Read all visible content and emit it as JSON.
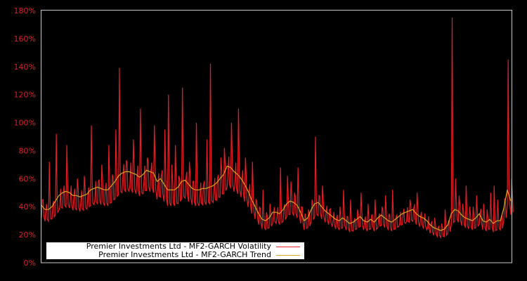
{
  "chart_data": {
    "type": "line",
    "title": "",
    "xlabel": "",
    "ylabel": "",
    "ylim": [
      0,
      180
    ],
    "y_ticks": [
      "0%",
      "20%",
      "40%",
      "60%",
      "80%",
      "100%",
      "120%",
      "140%",
      "160%",
      "180%"
    ],
    "grid": false,
    "legend_position": "lower left",
    "background": "#000000",
    "axis_color": "#c8c8c8",
    "tick_label_color": "#e31e24",
    "x": [
      0,
      1,
      2,
      3,
      4,
      5,
      6,
      7,
      8,
      9,
      10,
      11,
      12,
      13,
      14,
      15,
      16,
      17,
      18,
      19,
      20,
      21,
      22,
      23,
      24,
      25,
      26,
      27,
      28,
      29,
      30,
      31,
      32,
      33,
      34,
      35,
      36,
      37,
      38,
      39,
      40,
      41,
      42,
      43,
      44,
      45,
      46,
      47,
      48,
      49,
      50,
      51,
      52,
      53,
      54,
      55,
      56,
      57,
      58,
      59,
      60,
      61,
      62,
      63,
      64,
      65,
      66,
      67,
      68,
      69,
      70,
      71,
      72,
      73,
      74,
      75,
      76,
      77,
      78,
      79,
      80,
      81,
      82,
      83,
      84,
      85,
      86,
      87,
      88,
      89,
      90,
      91,
      92,
      93,
      94,
      95,
      96,
      97,
      98,
      99,
      100,
      101,
      102,
      103,
      104,
      105,
      106,
      107,
      108,
      109,
      110,
      111,
      112,
      113,
      114,
      115,
      116,
      117,
      118,
      119,
      120,
      121,
      122,
      123,
      124,
      125,
      126,
      127,
      128,
      129,
      130,
      131,
      132,
      133,
      134
    ],
    "series": [
      {
        "name": "Premier Investments Ltd - MF2-GARCH Volatility",
        "color": "#e31e24",
        "values": [
          45,
          38,
          72,
          42,
          92,
          40,
          50,
          84,
          45,
          48,
          60,
          44,
          62,
          48,
          98,
          45,
          58,
          70,
          52,
          84,
          63,
          95,
          139,
          62,
          73,
          55,
          88,
          60,
          110,
          58,
          75,
          65,
          98,
          55,
          62,
          95,
          120,
          70,
          84,
          62,
          125,
          60,
          72,
          58,
          100,
          48,
          55,
          88,
          142,
          52,
          60,
          75,
          82,
          64,
          100,
          58,
          110,
          60,
          75,
          50,
          72,
          45,
          40,
          52,
          36,
          42,
          35,
          33,
          68,
          40,
          62,
          58,
          50,
          68,
          40,
          35,
          38,
          45,
          90,
          48,
          55,
          36,
          38,
          30,
          32,
          40,
          52,
          33,
          45,
          30,
          38,
          50,
          30,
          42,
          34,
          45,
          32,
          40,
          48,
          35,
          52,
          33,
          28,
          35,
          30,
          45,
          38,
          50,
          33,
          30,
          25,
          28,
          32,
          25,
          28,
          38,
          30,
          175,
          60,
          48,
          42,
          55,
          40,
          40,
          48,
          35,
          42,
          38,
          50,
          55,
          45,
          32,
          46,
          145,
          60
        ],
        "estimated": true
      },
      {
        "name": "Premier Investments Ltd - MF2-GARCH Trend",
        "color": "#d9a520",
        "values": [
          41,
          38,
          38,
          40,
          44,
          48,
          50,
          51,
          50,
          48,
          48,
          47,
          48,
          49,
          52,
          53,
          54,
          53,
          52,
          52,
          55,
          58,
          62,
          64,
          65,
          65,
          64,
          63,
          61,
          63,
          66,
          65,
          64,
          58,
          60,
          56,
          52,
          52,
          52,
          54,
          58,
          59,
          56,
          53,
          52,
          52,
          53,
          53,
          54,
          55,
          57,
          60,
          63,
          69,
          68,
          65,
          63,
          60,
          56,
          51,
          45,
          40,
          35,
          31,
          30,
          32,
          36,
          36,
          35,
          38,
          42,
          44,
          43,
          41,
          36,
          30,
          32,
          38,
          42,
          43,
          40,
          37,
          35,
          33,
          31,
          30,
          32,
          30,
          28,
          29,
          31,
          33,
          30,
          29,
          31,
          29,
          32,
          34,
          32,
          30,
          29,
          31,
          33,
          35,
          36,
          37,
          38,
          35,
          33,
          32,
          30,
          27,
          25,
          24,
          23,
          24,
          27,
          35,
          38,
          37,
          34,
          32,
          31,
          30,
          32,
          35,
          30,
          29,
          31,
          28,
          30,
          30,
          39,
          52,
          44
        ],
        "estimated": true
      }
    ]
  },
  "axes": {
    "y_tick_labels": [
      "0%",
      "20%",
      "40%",
      "60%",
      "80%",
      "100%",
      "120%",
      "140%",
      "160%",
      "180%"
    ]
  },
  "legend": {
    "items": [
      {
        "label": "Premier Investments Ltd - MF2-GARCH Volatility",
        "color": "#e31e24"
      },
      {
        "label": "Premier Investments Ltd - MF2-GARCH Trend",
        "color": "#d9a520"
      }
    ]
  }
}
